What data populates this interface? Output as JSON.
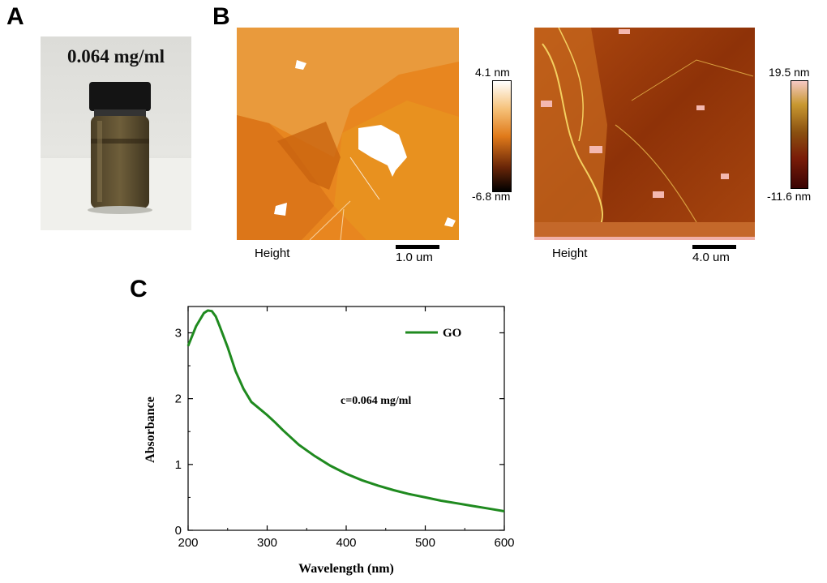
{
  "panels": {
    "a": {
      "label": "A",
      "sample_text": "0.064 mg/ml"
    },
    "b": {
      "label": "B",
      "left": {
        "cb_max": "4.1 nm",
        "cb_min": "-6.8 nm",
        "caption": "Height",
        "scale_label": "1.0 um"
      },
      "right": {
        "cb_max": "19.5 nm",
        "cb_min": "-11.6 nm",
        "caption": "Height",
        "scale_label": "4.0 um"
      }
    },
    "c": {
      "label": "C"
    }
  },
  "colors": {
    "line": "#1f8a1f",
    "afm_left": "#e07a1a",
    "afm_right": "#9a3a0c"
  },
  "chart_data": {
    "type": "line",
    "title": "",
    "xlabel": "Wavelength (nm)",
    "ylabel": "Absorbance",
    "xlim": [
      200,
      600
    ],
    "ylim": [
      0,
      3.4
    ],
    "xticks": [
      200,
      300,
      400,
      500,
      600
    ],
    "yticks": [
      0,
      1,
      2,
      3
    ],
    "legend": {
      "position": "top-right",
      "entries": [
        "GO"
      ]
    },
    "annotation": "c=0.064 mg/ml",
    "series": [
      {
        "name": "GO",
        "x": [
          200,
          210,
          220,
          225,
          230,
          235,
          240,
          250,
          260,
          270,
          280,
          290,
          300,
          310,
          320,
          340,
          360,
          380,
          400,
          420,
          440,
          460,
          480,
          500,
          520,
          540,
          560,
          580,
          600
        ],
        "y": [
          2.8,
          3.1,
          3.3,
          3.34,
          3.33,
          3.25,
          3.1,
          2.78,
          2.42,
          2.15,
          1.95,
          1.85,
          1.75,
          1.64,
          1.52,
          1.3,
          1.13,
          0.98,
          0.86,
          0.76,
          0.68,
          0.61,
          0.55,
          0.5,
          0.45,
          0.41,
          0.37,
          0.33,
          0.29
        ]
      }
    ]
  }
}
